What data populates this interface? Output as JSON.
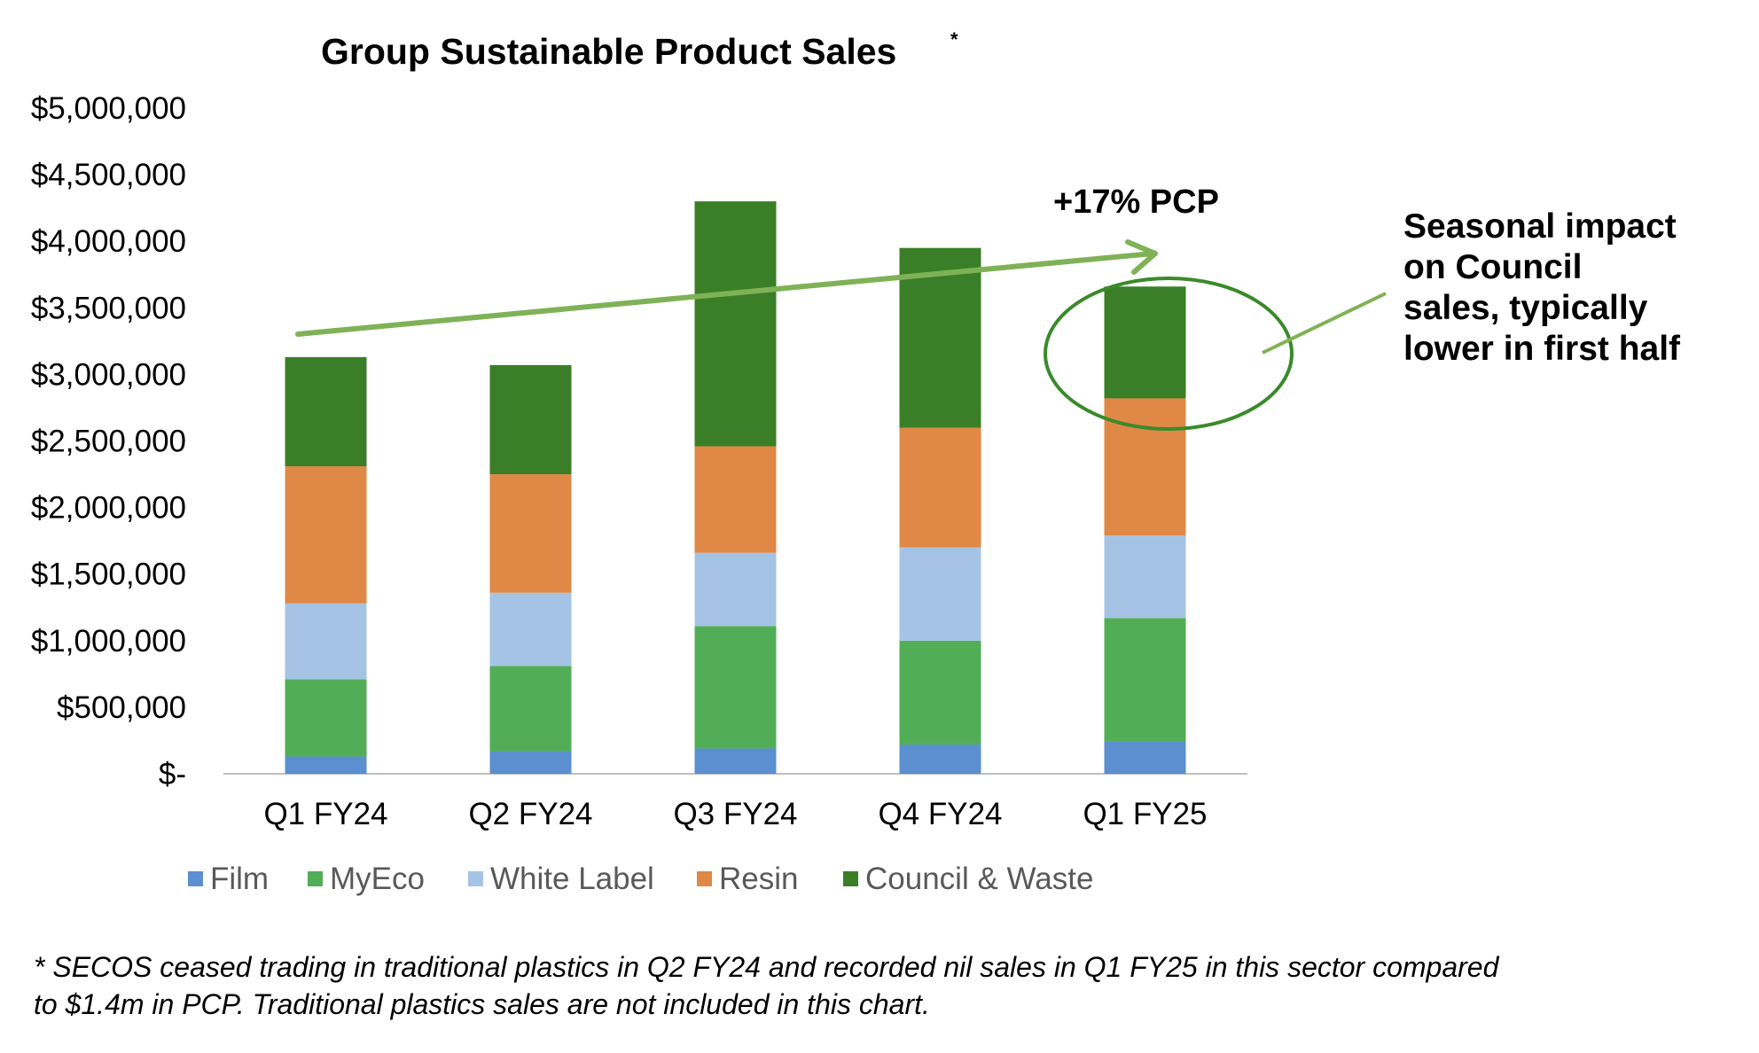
{
  "chart_data": {
    "type": "bar",
    "stacked": true,
    "title": "Group Sustainable Product Sales",
    "title_marker": "*",
    "categories": [
      "Q1 FY24",
      "Q2 FY24",
      "Q3 FY24",
      "Q4 FY24",
      "Q1 FY25"
    ],
    "series": [
      {
        "name": "Film",
        "color": "#5b8fd0",
        "values": [
          130000,
          170000,
          190000,
          220000,
          240000
        ]
      },
      {
        "name": "MyEco",
        "color": "#52ae56",
        "values": [
          580000,
          640000,
          920000,
          780000,
          930000
        ]
      },
      {
        "name": "White Label",
        "color": "#a5c3e5",
        "values": [
          570000,
          550000,
          550000,
          700000,
          620000
        ]
      },
      {
        "name": "Resin",
        "color": "#e08845",
        "values": [
          1030000,
          890000,
          800000,
          900000,
          1030000
        ]
      },
      {
        "name": "Council & Waste",
        "color": "#3a7f27",
        "values": [
          820000,
          820000,
          1840000,
          1350000,
          840000
        ]
      }
    ],
    "ylim": [
      0,
      5000000
    ],
    "ytick_values": [
      0,
      500000,
      1000000,
      1500000,
      2000000,
      2500000,
      3000000,
      3500000,
      4000000,
      4500000,
      5000000
    ],
    "ytick_labels": [
      "$-",
      "$500,000",
      "$1,000,000",
      "$1,500,000",
      "$2,000,000",
      "$2,500,000",
      "$3,000,000",
      "$3,500,000",
      "$4,000,000",
      "$4,500,000",
      "$5,000,000"
    ],
    "xlabel": "",
    "ylabel": "",
    "grid": false,
    "legend_position": "bottom"
  },
  "annotations": {
    "pcp_label": "+17% PCP",
    "callout_lines": [
      "Seasonal impact",
      "on Council",
      "sales, typically",
      "lower in first half"
    ],
    "accent_color": "#7fb257"
  },
  "footnote_lines": [
    "* SECOS ceased trading in traditional plastics in Q2 FY24 and recorded nil sales in Q1 FY25 in this sector compared",
    "to $1.4m in PCP.  Traditional plastics sales are not included in this chart."
  ]
}
